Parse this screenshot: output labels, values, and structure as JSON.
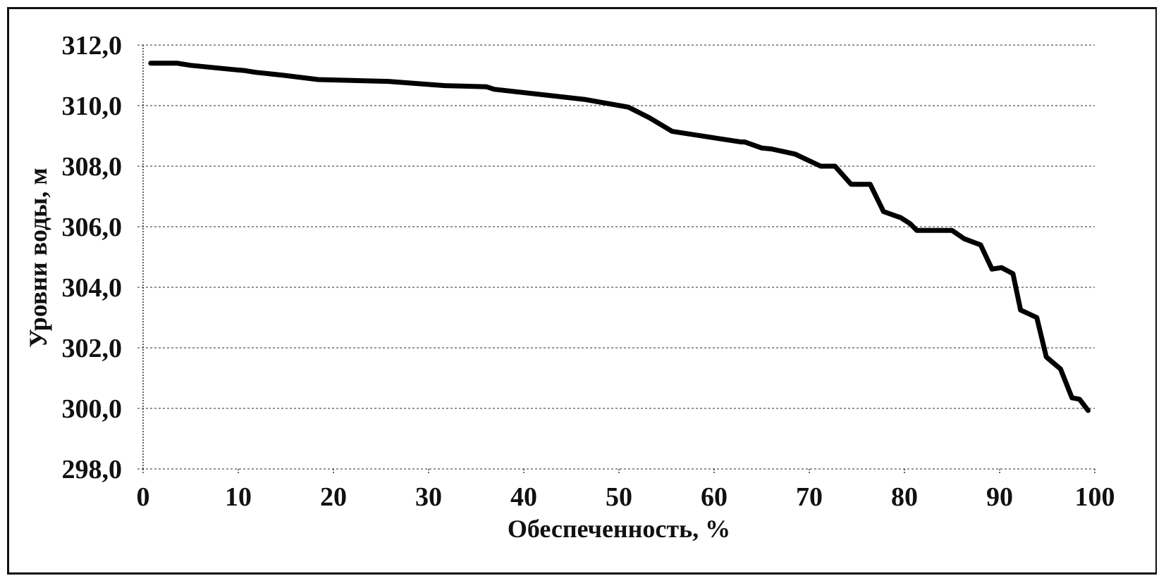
{
  "chart_data": {
    "type": "line",
    "title": "",
    "xlabel": "Обеспеченность, %",
    "ylabel": "Уровни воды, м",
    "xlim": [
      0,
      100
    ],
    "ylim": [
      298,
      312
    ],
    "x_ticks": [
      0,
      10,
      20,
      30,
      40,
      50,
      60,
      70,
      80,
      90,
      100
    ],
    "x_tick_labels": [
      "0",
      "10",
      "20",
      "30",
      "40",
      "50",
      "60",
      "70",
      "80",
      "90",
      "100"
    ],
    "y_ticks": [
      298,
      300,
      302,
      304,
      306,
      308,
      310,
      312
    ],
    "y_tick_labels": [
      "298,0",
      "300,0",
      "302,0",
      "304,0",
      "306,0",
      "308,0",
      "310,0",
      "312,0"
    ],
    "grid": true,
    "legend": null,
    "series": [
      {
        "name": "Уровни воды",
        "color": "#000000",
        "x": [
          0.8,
          3.6,
          5.0,
          9.5,
          10.6,
          11.8,
          14.8,
          18.4,
          25.8,
          31.7,
          33.2,
          36.1,
          36.9,
          46.5,
          51.0,
          53.2,
          55.6,
          62.8,
          63.2,
          65.0,
          66.0,
          68.5,
          71.2,
          72.7,
          74.4,
          76.4,
          77.8,
          79.6,
          80.6,
          81.3,
          85.0,
          86.3,
          88.0,
          89.2,
          90.2,
          91.4,
          92.2,
          93.9,
          94.9,
          96.4,
          97.6,
          98.4,
          99.3
        ],
        "y": [
          311.4,
          311.4,
          311.33,
          311.19,
          311.16,
          311.1,
          311.0,
          310.86,
          310.8,
          310.66,
          310.65,
          310.62,
          310.54,
          310.2,
          309.95,
          309.6,
          309.15,
          308.8,
          308.8,
          308.6,
          308.57,
          308.4,
          308.0,
          308.0,
          307.4,
          307.4,
          306.5,
          306.3,
          306.1,
          305.88,
          305.88,
          305.6,
          305.4,
          304.6,
          304.65,
          304.45,
          303.25,
          303.0,
          301.7,
          301.3,
          300.35,
          300.3,
          299.93
        ]
      }
    ]
  },
  "colors": {
    "line": "#000000",
    "grid": "#555555",
    "background": "#ffffff",
    "frame": "#111111"
  }
}
